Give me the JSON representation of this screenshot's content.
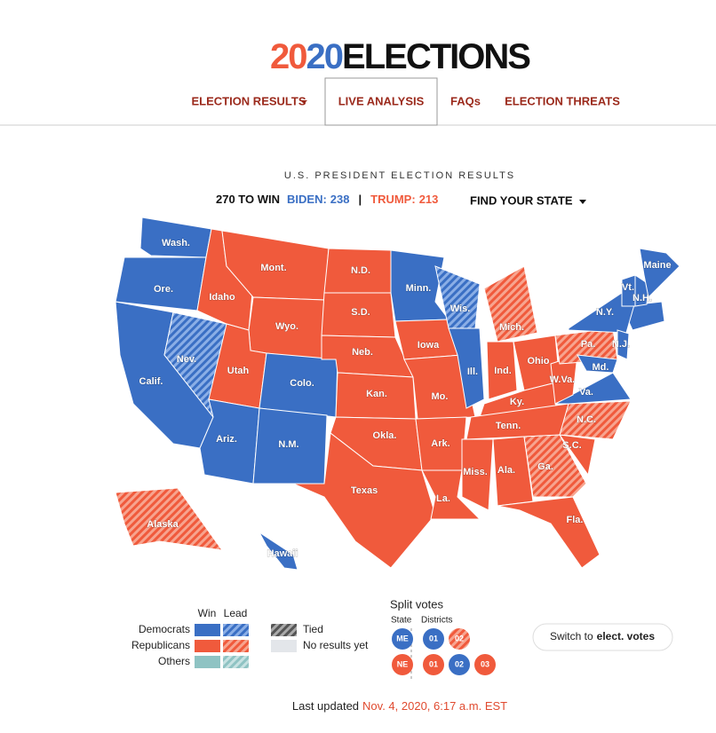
{
  "header": {
    "logo": [
      "20",
      "20",
      "ELECTIONS"
    ],
    "nav": [
      {
        "label": "ELECTION RESULTS",
        "dropdown": true
      },
      {
        "label": "LIVE ANALYSIS",
        "active": true
      },
      {
        "label": "FAQs"
      },
      {
        "label": "ELECTION THREATS"
      }
    ]
  },
  "results": {
    "title": "U.S. PRESIDENT ELECTION RESULTS",
    "to_win": "270 TO WIN",
    "biden": {
      "label": "BIDEN:",
      "votes": 238
    },
    "separator": "|",
    "trump": {
      "label": "TRUMP:",
      "votes": 213
    },
    "find": "FIND YOUR STATE"
  },
  "states": [
    {
      "label": "Wash.",
      "status": "dem-win"
    },
    {
      "label": "Ore.",
      "status": "dem-win"
    },
    {
      "label": "Calif.",
      "status": "dem-win"
    },
    {
      "label": "Nev.",
      "status": "dem-lead"
    },
    {
      "label": "Idaho",
      "status": "rep-win"
    },
    {
      "label": "Mont.",
      "status": "rep-win"
    },
    {
      "label": "Wyo.",
      "status": "rep-win"
    },
    {
      "label": "Utah",
      "status": "rep-win"
    },
    {
      "label": "Colo.",
      "status": "dem-win"
    },
    {
      "label": "Ariz.",
      "status": "dem-win"
    },
    {
      "label": "N.M.",
      "status": "dem-win"
    },
    {
      "label": "N.D.",
      "status": "rep-win"
    },
    {
      "label": "S.D.",
      "status": "rep-win"
    },
    {
      "label": "Neb.",
      "status": "rep-win"
    },
    {
      "label": "Kan.",
      "status": "rep-win"
    },
    {
      "label": "Okla.",
      "status": "rep-win"
    },
    {
      "label": "Texas",
      "status": "rep-win"
    },
    {
      "label": "Minn.",
      "status": "dem-win"
    },
    {
      "label": "Iowa",
      "status": "rep-win"
    },
    {
      "label": "Mo.",
      "status": "rep-win"
    },
    {
      "label": "Ark.",
      "status": "rep-win"
    },
    {
      "label": "La.",
      "status": "rep-win"
    },
    {
      "label": "Wis.",
      "status": "dem-lead"
    },
    {
      "label": "Ill.",
      "status": "dem-win"
    },
    {
      "label": "Mich.",
      "status": "rep-lead"
    },
    {
      "label": "Ind.",
      "status": "rep-win"
    },
    {
      "label": "Ohio",
      "status": "rep-win"
    },
    {
      "label": "Ky.",
      "status": "rep-win"
    },
    {
      "label": "Tenn.",
      "status": "rep-win"
    },
    {
      "label": "Miss.",
      "status": "rep-win"
    },
    {
      "label": "Ala.",
      "status": "rep-win"
    },
    {
      "label": "Ga.",
      "status": "rep-lead"
    },
    {
      "label": "Fla.",
      "status": "rep-win"
    },
    {
      "label": "S.C.",
      "status": "rep-win"
    },
    {
      "label": "N.C.",
      "status": "rep-lead"
    },
    {
      "label": "Va.",
      "status": "dem-win"
    },
    {
      "label": "W.Va.",
      "status": "rep-win"
    },
    {
      "label": "Pa.",
      "status": "rep-lead"
    },
    {
      "label": "N.Y.",
      "status": "dem-win"
    },
    {
      "label": "N.J.",
      "status": "dem-win"
    },
    {
      "label": "Md.",
      "status": "dem-win"
    },
    {
      "label": "Vt.",
      "status": "dem-win"
    },
    {
      "label": "N.H.",
      "status": "dem-win"
    },
    {
      "label": "Maine",
      "status": "dem-win"
    },
    {
      "label": "Alaska",
      "status": "rep-lead"
    },
    {
      "label": "Hawaii",
      "status": "dem-win"
    }
  ],
  "legend": {
    "win": "Win",
    "lead": "Lead",
    "rows": [
      {
        "label": "Democrats",
        "win": "dem-win",
        "lead": "dem-lead"
      },
      {
        "label": "Republicans",
        "win": "rep-win",
        "lead": "rep-lead"
      },
      {
        "label": "Others",
        "win": "oth-win",
        "lead": "oth-lead"
      }
    ],
    "tied": "Tied",
    "no_results": "No results yet"
  },
  "split": {
    "title": "Split votes",
    "state": "State",
    "districts": "Districts",
    "rows": [
      {
        "state": {
          "label": "ME",
          "status": "dem-win"
        },
        "districts": [
          {
            "label": "01",
            "status": "dem-win"
          },
          {
            "label": "02",
            "status": "rep-lead"
          }
        ]
      },
      {
        "state": {
          "label": "NE",
          "status": "rep-win"
        },
        "districts": [
          {
            "label": "01",
            "status": "rep-win"
          },
          {
            "label": "02",
            "status": "dem-win"
          },
          {
            "label": "03",
            "status": "rep-win"
          }
        ]
      }
    ]
  },
  "switch": {
    "prefix": "Switch to",
    "bold": "elect. votes"
  },
  "updated": {
    "label": "Last updated",
    "time": "Nov. 4, 2020, 6:17 a.m. EST"
  }
}
